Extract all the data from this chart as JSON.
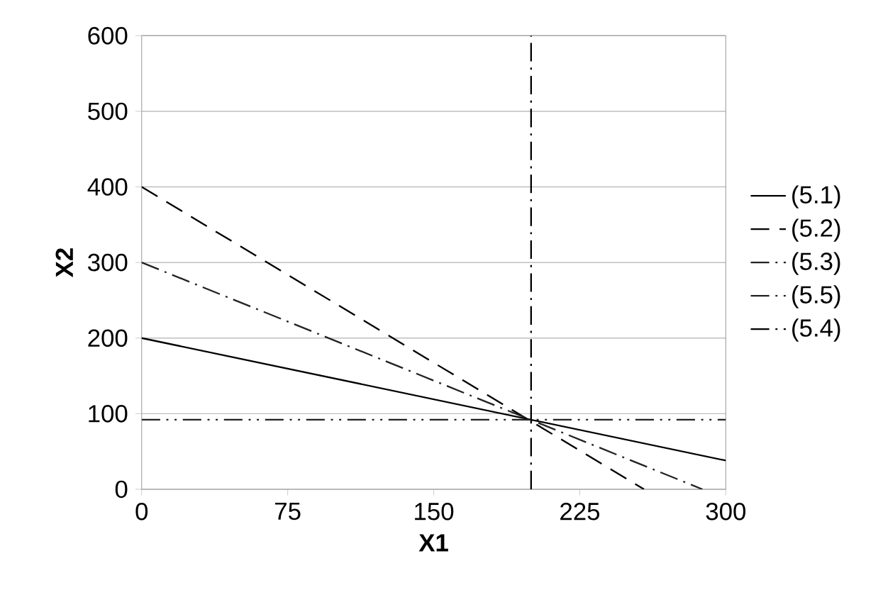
{
  "chart_data": {
    "type": "line",
    "xlabel": "X1",
    "ylabel": "X2",
    "xlim": [
      0,
      300
    ],
    "ylim": [
      0,
      600
    ],
    "xticks": [
      0,
      75,
      150,
      225,
      300
    ],
    "yticks": [
      0,
      100,
      200,
      300,
      400,
      500,
      600
    ],
    "grid": "y",
    "legend": "right",
    "marker": "none",
    "series": [
      {
        "name": "(5.1)",
        "color": "#000000",
        "line_style": "solid",
        "x": [
          0,
          300
        ],
        "values": [
          200,
          38
        ]
      },
      {
        "name": "(5.2)",
        "color": "#000000",
        "line_style": "dashed",
        "x": [
          0,
          258
        ],
        "values": [
          400,
          0
        ]
      },
      {
        "name": "(5.3)",
        "color": "#222222",
        "line_style": "dashdot",
        "x": [
          0,
          288
        ],
        "values": [
          300,
          0
        ]
      },
      {
        "name": "(5.5)",
        "color": "#222222",
        "line_style": "dashdotdot",
        "x": [
          0,
          300
        ],
        "values": [
          92,
          92
        ]
      },
      {
        "name": "(5.4)",
        "color": "#000000",
        "line_style": "dashdot",
        "x": [
          200,
          200
        ],
        "values": [
          0,
          600
        ]
      }
    ]
  }
}
